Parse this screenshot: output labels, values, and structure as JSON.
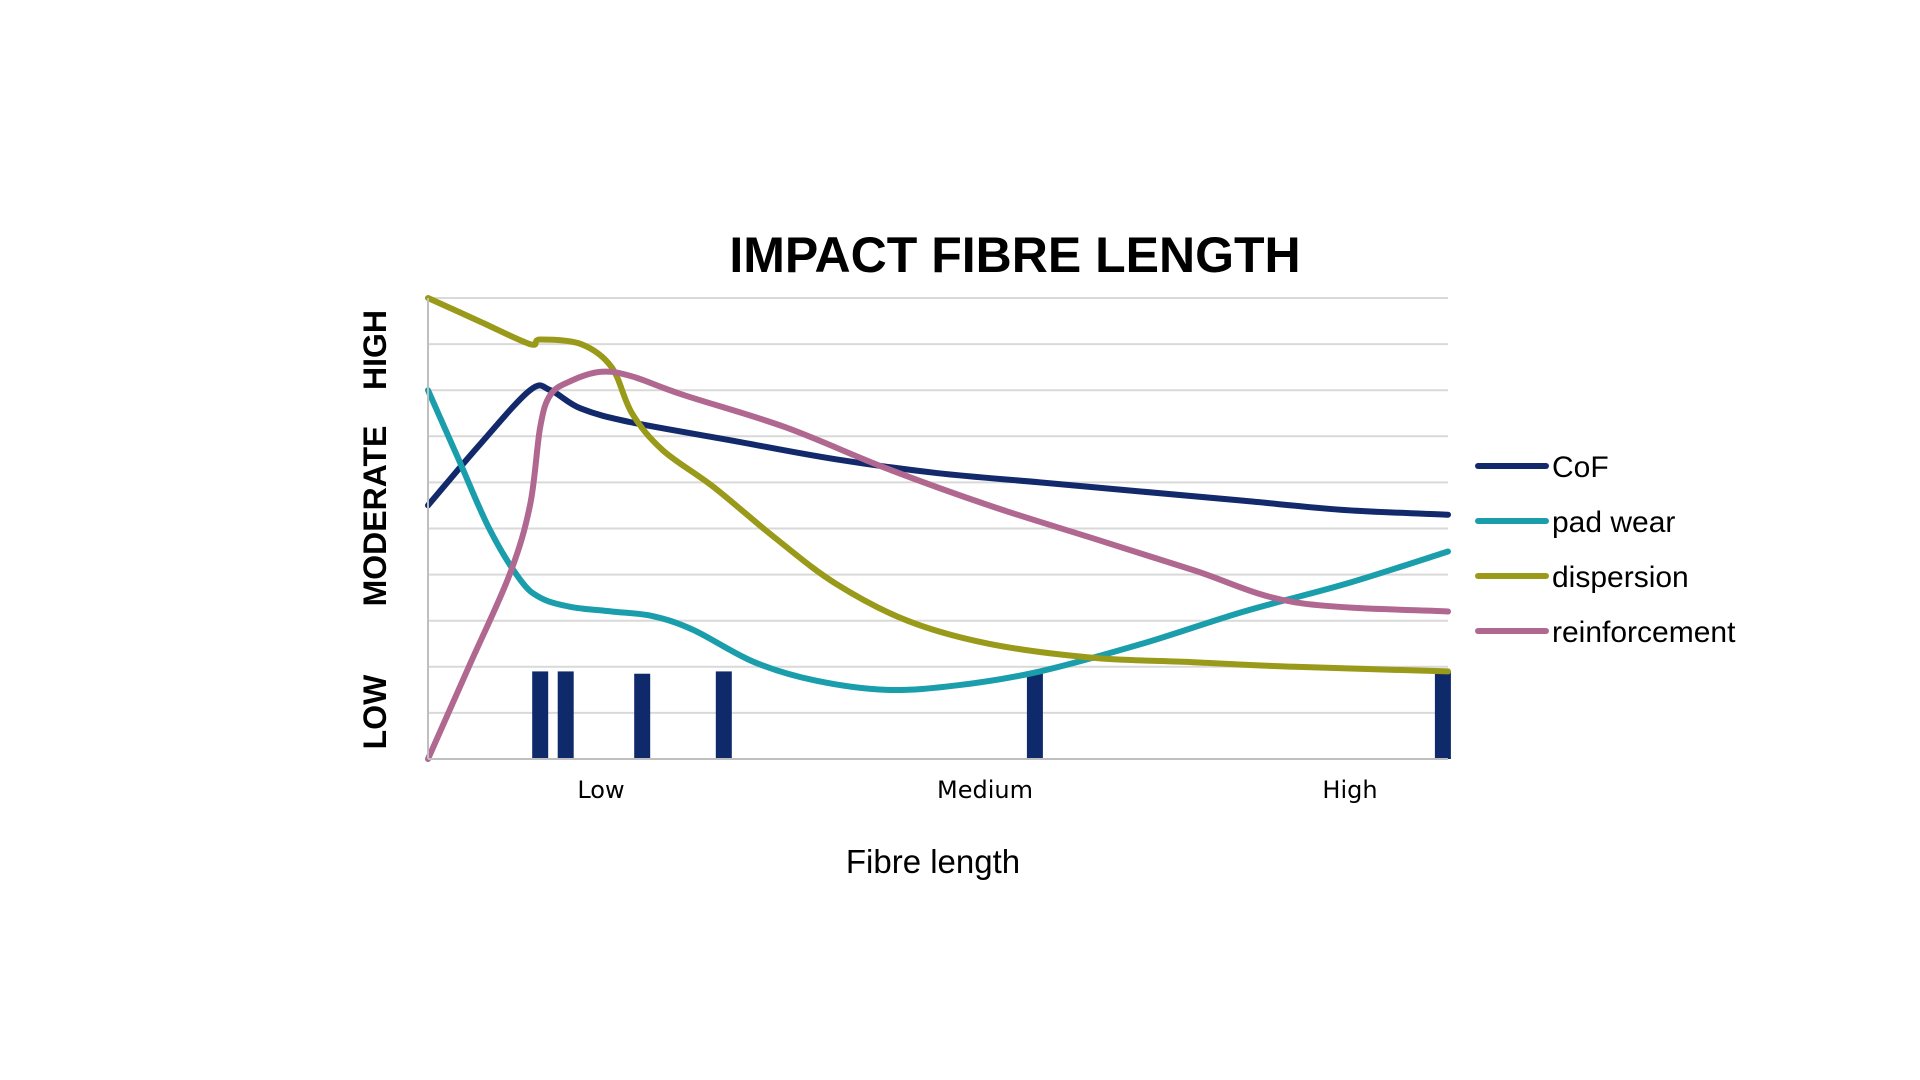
{
  "chart_data": {
    "type": "line",
    "title": "IMPACT FIBRE LENGTH",
    "xlabel": "Fibre length",
    "x_ticks": [
      "Low",
      "Medium",
      "High"
    ],
    "y_bands": [
      "LOW",
      "MODERATE",
      "HIGH"
    ],
    "xlim": [
      0,
      100
    ],
    "ylim": [
      0,
      10
    ],
    "gridlines": "horizontal",
    "legend_position": "right",
    "series": [
      {
        "name": "CoF",
        "color": "#12296b",
        "points": [
          [
            0,
            5.5
          ],
          [
            5,
            6.8
          ],
          [
            10,
            8.0
          ],
          [
            12,
            8.0
          ],
          [
            15,
            7.6
          ],
          [
            20,
            7.3
          ],
          [
            30,
            6.9
          ],
          [
            40,
            6.5
          ],
          [
            50,
            6.2
          ],
          [
            60,
            6.0
          ],
          [
            70,
            5.8
          ],
          [
            80,
            5.6
          ],
          [
            90,
            5.4
          ],
          [
            100,
            5.3
          ]
        ]
      },
      {
        "name": "pad wear",
        "color": "#1a9eac",
        "points": [
          [
            0,
            8.0
          ],
          [
            3,
            6.5
          ],
          [
            6,
            5.0
          ],
          [
            9,
            3.9
          ],
          [
            11,
            3.5
          ],
          [
            14,
            3.3
          ],
          [
            18,
            3.2
          ],
          [
            22,
            3.1
          ],
          [
            26,
            2.8
          ],
          [
            32,
            2.1
          ],
          [
            38,
            1.7
          ],
          [
            45,
            1.5
          ],
          [
            52,
            1.6
          ],
          [
            60,
            1.9
          ],
          [
            70,
            2.5
          ],
          [
            80,
            3.2
          ],
          [
            90,
            3.8
          ],
          [
            100,
            4.5
          ]
        ]
      },
      {
        "name": "dispersion",
        "color": "#999a1a",
        "points": [
          [
            0,
            10.0
          ],
          [
            5,
            9.5
          ],
          [
            10,
            9.0
          ],
          [
            11,
            9.1
          ],
          [
            15,
            9.0
          ],
          [
            18,
            8.5
          ],
          [
            20,
            7.5
          ],
          [
            23,
            6.7
          ],
          [
            28,
            5.9
          ],
          [
            34,
            4.8
          ],
          [
            40,
            3.8
          ],
          [
            47,
            3.0
          ],
          [
            55,
            2.5
          ],
          [
            65,
            2.2
          ],
          [
            75,
            2.1
          ],
          [
            85,
            2.0
          ],
          [
            100,
            1.9
          ]
        ]
      },
      {
        "name": "reinforcement",
        "color": "#b06891",
        "points": [
          [
            0,
            0.0
          ],
          [
            4,
            2.0
          ],
          [
            8,
            4.0
          ],
          [
            10,
            5.5
          ],
          [
            11,
            7.2
          ],
          [
            12,
            7.9
          ],
          [
            14,
            8.2
          ],
          [
            17,
            8.4
          ],
          [
            20,
            8.3
          ],
          [
            25,
            7.9
          ],
          [
            35,
            7.2
          ],
          [
            45,
            6.3
          ],
          [
            55,
            5.5
          ],
          [
            65,
            4.8
          ],
          [
            75,
            4.1
          ],
          [
            85,
            3.4
          ],
          [
            100,
            3.2
          ]
        ]
      }
    ],
    "bars": {
      "color": "#0f2a6b",
      "x": [
        11,
        13.5,
        21,
        29,
        59.5,
        99.5
      ],
      "heights": [
        1.9,
        1.9,
        1.85,
        1.9,
        1.9,
        1.9
      ]
    }
  }
}
